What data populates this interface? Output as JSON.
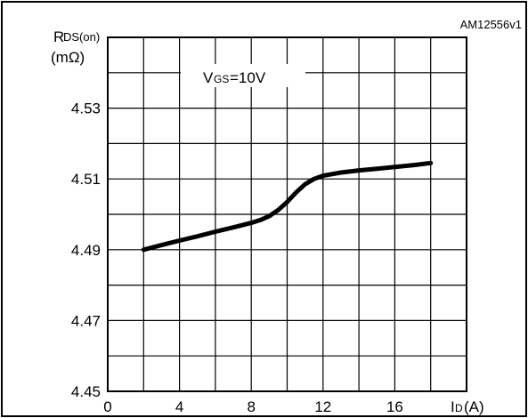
{
  "chart_data": {
    "type": "line",
    "figure_id": "AM12556v1",
    "ylabel_main": "R",
    "ylabel_sub": "DS(on)",
    "ylabel_unit": "(mΩ)",
    "xlabel_main": "I",
    "xlabel_sub": "D",
    "xlabel_unit": "(A)",
    "annotation_main": "V",
    "annotation_sub": "GS",
    "annotation_value": "=10V",
    "xlim": [
      0,
      20
    ],
    "ylim": [
      4.45,
      4.55
    ],
    "x_ticks": [
      0,
      4,
      8,
      12,
      16
    ],
    "x_tick_labels": [
      "0",
      "4",
      "8",
      "12",
      "16"
    ],
    "y_ticks": [
      4.45,
      4.47,
      4.49,
      4.51,
      4.53
    ],
    "y_tick_labels": [
      "4.45",
      "4.47",
      "4.49",
      "4.51",
      "4.53"
    ],
    "grid": true,
    "series": [
      {
        "x": [
          2,
          3,
          4,
          5,
          6,
          7,
          8,
          8.5,
          9,
          9.5,
          10,
          10.5,
          11,
          11.5,
          12,
          13,
          14,
          15,
          16,
          17,
          18
        ],
        "y": [
          4.49,
          4.4913,
          4.4926,
          4.4938,
          4.4951,
          4.4963,
          4.4976,
          4.4984,
          4.4995,
          4.5012,
          4.5035,
          4.5062,
          4.5085,
          4.51,
          4.5109,
          4.5118,
          4.5124,
          4.5129,
          4.5134,
          4.5139,
          4.5145
        ]
      }
    ]
  }
}
